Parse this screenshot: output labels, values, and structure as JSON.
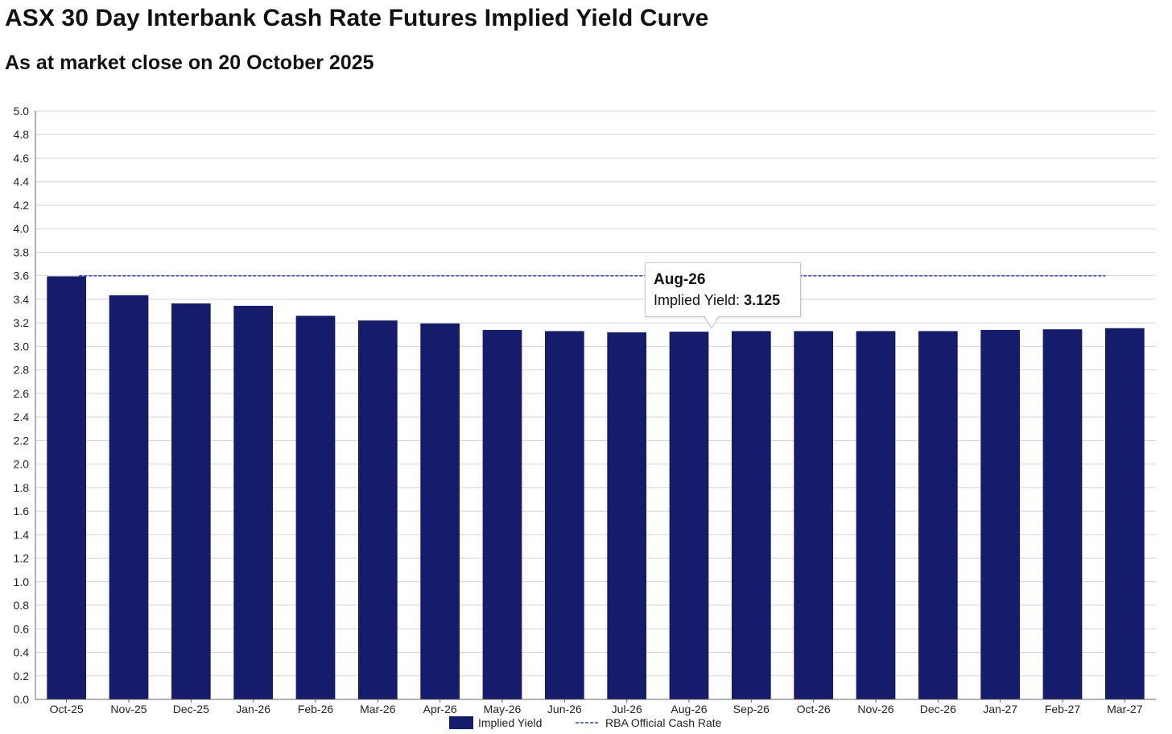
{
  "header": {
    "title": "ASX 30 Day Interbank Cash Rate Futures Implied Yield Curve",
    "subtitle": "As at market close on 20 October 2025"
  },
  "colors": {
    "bar": "#141c6b",
    "reference_line": "#2c3fd6",
    "grid": "#d4d4d4",
    "axis": "#666666"
  },
  "tooltip": {
    "title": "Aug-26",
    "label": "Implied Yield:",
    "value": "3.125"
  },
  "chart_data": {
    "type": "bar",
    "title": "",
    "xlabel": "",
    "ylabel": "",
    "categories": [
      "Oct-25",
      "Nov-25",
      "Dec-25",
      "Jan-26",
      "Feb-26",
      "Mar-26",
      "Apr-26",
      "May-26",
      "Jun-26",
      "Jul-26",
      "Aug-26",
      "Sep-26",
      "Oct-26",
      "Nov-26",
      "Dec-26",
      "Jan-27",
      "Feb-27",
      "Mar-27"
    ],
    "series": [
      {
        "name": "Implied Yield",
        "type": "bar",
        "values": [
          3.595,
          3.435,
          3.365,
          3.345,
          3.26,
          3.22,
          3.195,
          3.14,
          3.13,
          3.12,
          3.125,
          3.13,
          3.13,
          3.13,
          3.13,
          3.14,
          3.145,
          3.155
        ]
      },
      {
        "name": "RBA Official Cash Rate",
        "type": "line",
        "style": "dashed",
        "values": [
          3.6,
          3.6,
          3.6,
          3.6,
          3.6,
          3.6,
          3.6,
          3.6,
          3.6,
          3.6,
          3.6,
          3.6,
          3.6,
          3.6,
          3.6,
          3.6,
          3.6,
          3.6
        ]
      }
    ],
    "ylim": [
      0,
      5
    ],
    "yticks": [
      "0.0",
      "0.2",
      "0.4",
      "0.6",
      "0.8",
      "1.0",
      "1.2",
      "1.4",
      "1.6",
      "1.8",
      "2.0",
      "2.2",
      "2.4",
      "2.6",
      "2.8",
      "3.0",
      "3.2",
      "3.4",
      "3.6",
      "3.8",
      "4.0",
      "4.2",
      "4.4",
      "4.6",
      "4.8",
      "5.0"
    ],
    "grid": true,
    "legend": "bottom-center"
  }
}
